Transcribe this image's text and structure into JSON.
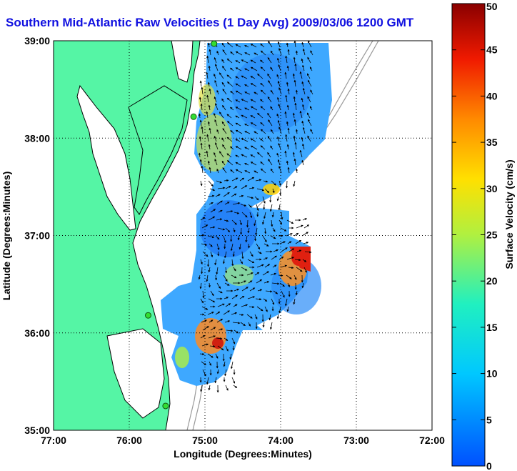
{
  "chart_data": {
    "type": "heatmap",
    "title": "Southern Mid-Atlantic Raw Velocities (1 Day Avg) 2009/03/06 1200 GMT",
    "xlabel": "Longitude (Degrees:Minutes)",
    "ylabel": "Latitude (Degrees:Minutes)",
    "x_ticks": [
      "77:00",
      "76:00",
      "75:00",
      "74:00",
      "73:00",
      "72:00"
    ],
    "y_ticks": [
      "39:00",
      "38:00",
      "37:00",
      "36:00",
      "35:00"
    ],
    "xlim": [
      -77,
      -72
    ],
    "ylim": [
      35,
      39
    ],
    "grid": true,
    "colorbar": {
      "label": "Surface Velocity (cm/s)",
      "range": [
        0,
        50
      ],
      "ticks": [
        "50",
        "45",
        "40",
        "35",
        "30",
        "25",
        "20",
        "15",
        "10",
        "5",
        "0"
      ]
    },
    "hf_radar_sites": [
      {
        "lon": -74.88,
        "lat": 38.97
      },
      {
        "lon": -75.15,
        "lat": 38.22
      },
      {
        "lon": -75.75,
        "lat": 36.18
      },
      {
        "lon": -75.52,
        "lat": 35.25
      }
    ],
    "colors": {
      "land": "#55f5a5",
      "title": "#1010e0",
      "site_marker": "#33dd33",
      "bathymetry": "#999999"
    }
  }
}
